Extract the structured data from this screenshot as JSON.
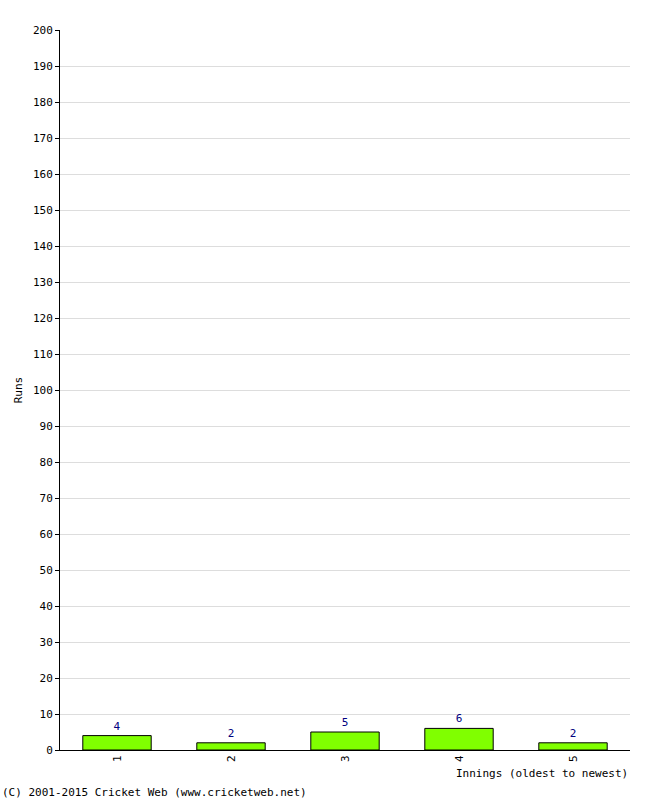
{
  "chart_data": {
    "type": "bar",
    "x_label": "Innings (oldest to newest)",
    "y_label": "Runs",
    "categories": [
      "1",
      "2",
      "3",
      "4",
      "5"
    ],
    "values": [
      4,
      2,
      5,
      6,
      2
    ],
    "color": "#80ff00",
    "ylim": [
      0,
      200
    ],
    "yticks": [
      0,
      10,
      20,
      30,
      40,
      50,
      60,
      70,
      80,
      90,
      100,
      110,
      120,
      130,
      140,
      150,
      160,
      170,
      180,
      190,
      200
    ],
    "grid": true,
    "data_labels": true,
    "annotations": [
      "(C) 2001-2015 Cricket Web (www.cricketweb.net)"
    ]
  }
}
